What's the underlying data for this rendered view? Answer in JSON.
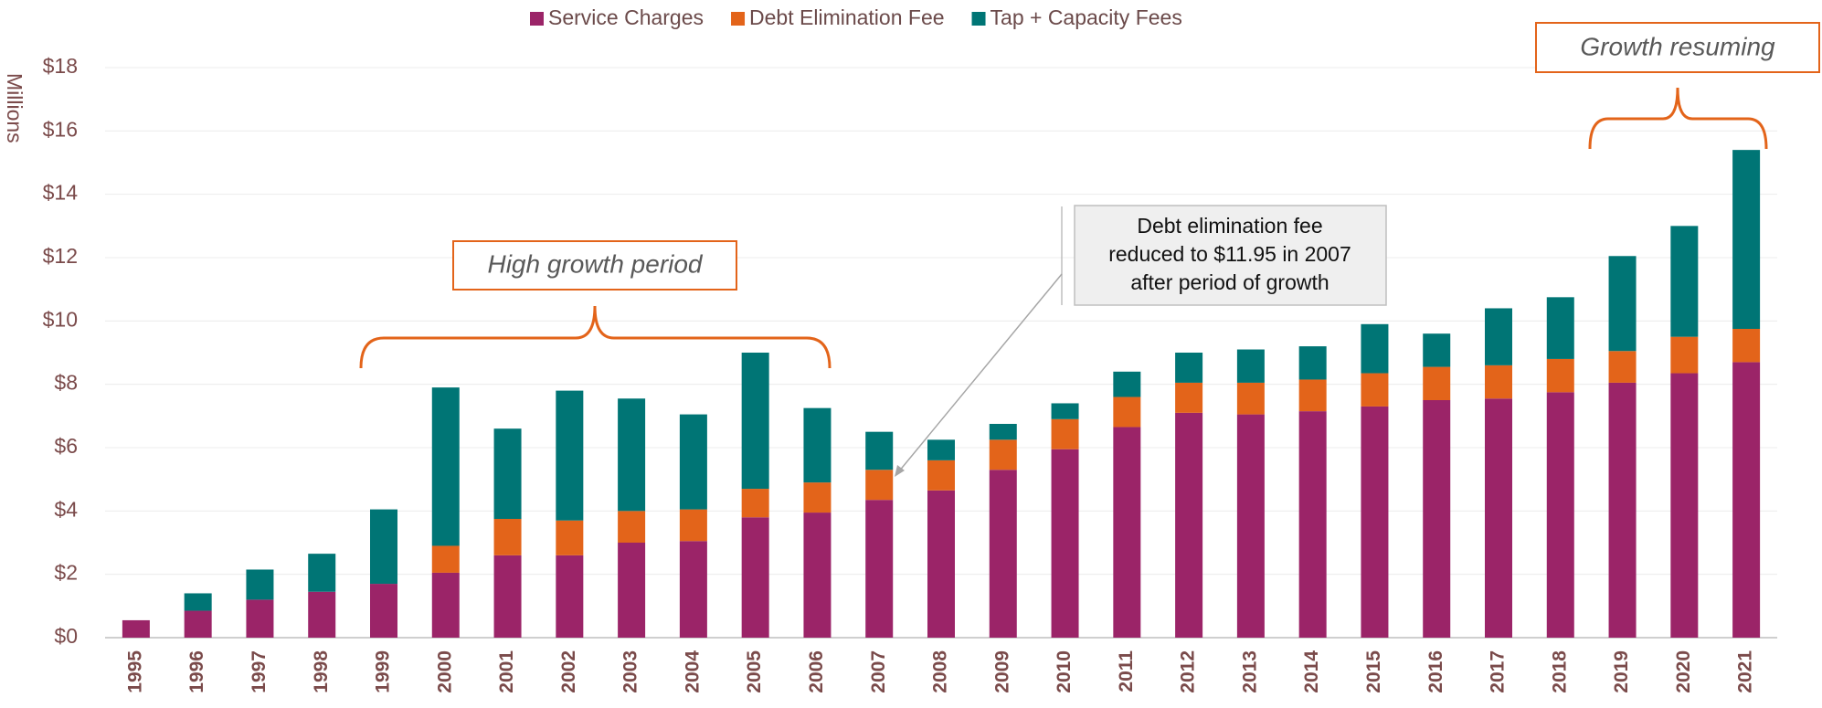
{
  "chart_data": {
    "type": "stacked_bar",
    "y_label": "Millions",
    "categories": [
      "1995",
      "1996",
      "1997",
      "1998",
      "1999",
      "2000",
      "2001",
      "2002",
      "2003",
      "2004",
      "2005",
      "2006",
      "2007",
      "2008",
      "2009",
      "2010",
      "2011",
      "2012",
      "2013",
      "2014",
      "2015",
      "2016",
      "2017",
      "2018",
      "2019",
      "2020",
      "2021"
    ],
    "series": [
      {
        "name": "Service Charges",
        "color": "#9b2468",
        "values": [
          0.55,
          0.85,
          1.2,
          1.45,
          1.7,
          2.05,
          2.6,
          2.6,
          3.0,
          3.05,
          3.8,
          3.95,
          4.35,
          4.65,
          5.3,
          5.95,
          6.65,
          7.1,
          7.05,
          7.15,
          7.3,
          7.5,
          7.55,
          7.75,
          8.05,
          8.35,
          8.7
        ]
      },
      {
        "name": "Debt Elimination Fee",
        "color": "#e3641a",
        "values": [
          0,
          0,
          0,
          0,
          0,
          0.85,
          1.15,
          1.1,
          1.0,
          1.0,
          0.9,
          0.95,
          0.95,
          0.95,
          0.95,
          0.95,
          0.95,
          0.95,
          1.0,
          1.0,
          1.05,
          1.05,
          1.05,
          1.05,
          1.0,
          1.15,
          1.05
        ]
      },
      {
        "name": "Tap + Capacity Fees",
        "color": "#007575",
        "values": [
          0,
          0.55,
          0.95,
          1.2,
          2.35,
          5.0,
          2.85,
          4.1,
          3.55,
          3.0,
          4.3,
          2.35,
          1.2,
          0.65,
          0.5,
          0.5,
          0.8,
          0.95,
          1.05,
          1.05,
          1.55,
          1.05,
          1.8,
          1.95,
          3.0,
          3.5,
          5.65
        ]
      }
    ],
    "ylim": [
      0,
      18
    ],
    "yticks": [
      {
        "value": 0,
        "label": "$0"
      },
      {
        "value": 2,
        "label": "$2"
      },
      {
        "value": 4,
        "label": "$4"
      },
      {
        "value": 6,
        "label": "$6"
      },
      {
        "value": 8,
        "label": "$8"
      },
      {
        "value": 10,
        "label": "$10"
      },
      {
        "value": 12,
        "label": "$12"
      },
      {
        "value": 14,
        "label": "$14"
      },
      {
        "value": 16,
        "label": "$16"
      },
      {
        "value": 18,
        "label": "$18"
      }
    ],
    "grid": true,
    "legend": "top",
    "annotations": {
      "high_growth": "High growth period",
      "growth_resuming": "Growth resuming",
      "callout": [
        "Debt elimination fee",
        "reduced to $11.95 in 2007",
        "after period of growth"
      ]
    }
  }
}
